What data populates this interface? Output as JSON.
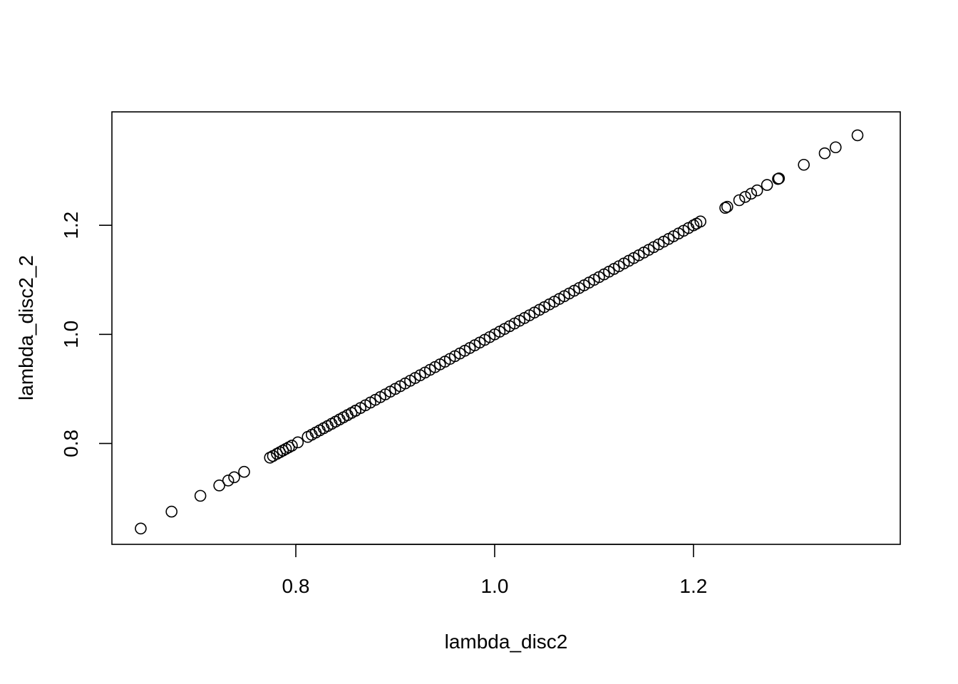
{
  "chart_data": {
    "type": "scatter",
    "title": "",
    "xlabel": "lambda_disc2",
    "ylabel": "lambda_disc2_2",
    "xlim": [
      0.615,
      1.408
    ],
    "ylim": [
      0.615,
      1.408
    ],
    "x_ticks": [
      0.8,
      1.0,
      1.2
    ],
    "x_tick_labels": [
      "0.8",
      "1.0",
      "1.2"
    ],
    "y_ticks": [
      0.8,
      1.0,
      1.2
    ],
    "y_tick_labels": [
      "0.8",
      "1.0",
      "1.2"
    ],
    "grid": false,
    "legend": "none",
    "point_shape": "open-circle",
    "dense_band": {
      "from": 0.86,
      "to": 1.12,
      "step": 0.005
    },
    "points": [
      [
        0.644,
        0.644
      ],
      [
        0.675,
        0.675
      ],
      [
        0.704,
        0.704
      ],
      [
        0.723,
        0.723
      ],
      [
        0.732,
        0.732
      ],
      [
        0.738,
        0.738
      ],
      [
        0.748,
        0.748
      ],
      [
        0.774,
        0.774
      ],
      [
        0.777,
        0.777
      ],
      [
        0.781,
        0.781
      ],
      [
        0.784,
        0.784
      ],
      [
        0.787,
        0.787
      ],
      [
        0.79,
        0.79
      ],
      [
        0.793,
        0.793
      ],
      [
        0.796,
        0.796
      ],
      [
        0.802,
        0.802
      ],
      [
        0.812,
        0.812
      ],
      [
        0.816,
        0.816
      ],
      [
        0.82,
        0.82
      ],
      [
        0.824,
        0.824
      ],
      [
        0.828,
        0.828
      ],
      [
        0.832,
        0.832
      ],
      [
        0.836,
        0.836
      ],
      [
        0.84,
        0.84
      ],
      [
        0.844,
        0.844
      ],
      [
        0.848,
        0.848
      ],
      [
        0.852,
        0.852
      ],
      [
        0.856,
        0.856
      ],
      [
        0.86,
        0.86
      ],
      [
        1.125,
        1.125
      ],
      [
        1.13,
        1.13
      ],
      [
        1.135,
        1.135
      ],
      [
        1.14,
        1.14
      ],
      [
        1.145,
        1.145
      ],
      [
        1.15,
        1.15
      ],
      [
        1.155,
        1.155
      ],
      [
        1.16,
        1.16
      ],
      [
        1.165,
        1.165
      ],
      [
        1.17,
        1.17
      ],
      [
        1.175,
        1.175
      ],
      [
        1.18,
        1.18
      ],
      [
        1.185,
        1.185
      ],
      [
        1.19,
        1.19
      ],
      [
        1.195,
        1.195
      ],
      [
        1.2,
        1.2
      ],
      [
        1.203,
        1.203
      ],
      [
        1.207,
        1.207
      ],
      [
        1.232,
        1.232
      ],
      [
        1.234,
        1.234
      ],
      [
        1.246,
        1.246
      ],
      [
        1.252,
        1.252
      ],
      [
        1.258,
        1.258
      ],
      [
        1.264,
        1.264
      ],
      [
        1.274,
        1.274
      ],
      [
        1.285,
        1.285
      ],
      [
        1.286,
        1.286
      ],
      [
        1.311,
        1.311
      ],
      [
        1.332,
        1.332
      ],
      [
        1.343,
        1.343
      ],
      [
        1.365,
        1.365
      ]
    ]
  }
}
